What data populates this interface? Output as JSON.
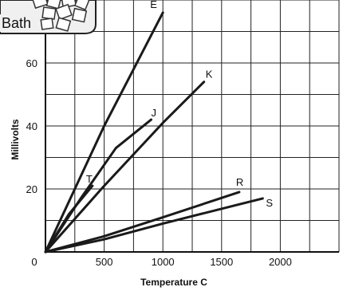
{
  "chart_data": {
    "type": "line",
    "title": "",
    "xlabel": "Temperature C",
    "ylabel": "Millivolts",
    "xlim": [
      0,
      2500
    ],
    "ylim": [
      0,
      80
    ],
    "x_ticks": [
      {
        "value": 0,
        "label": "0"
      },
      {
        "value": 500,
        "label": "500"
      },
      {
        "value": 1000,
        "label": "1000"
      },
      {
        "value": 1500,
        "label": "1500"
      },
      {
        "value": 2000,
        "label": "2000"
      }
    ],
    "y_ticks": [
      {
        "value": 20,
        "label": "20"
      },
      {
        "value": 40,
        "label": "40"
      },
      {
        "value": 60,
        "label": "60"
      }
    ],
    "grid": true,
    "line_color": "#1a1a1a",
    "series": [
      {
        "name": "E",
        "x": [
          0,
          250,
          500,
          750,
          1000
        ],
        "y": [
          0,
          20,
          40,
          58,
          76
        ]
      },
      {
        "name": "K",
        "x": [
          0,
          500,
          1000,
          1350
        ],
        "y": [
          0,
          21,
          41,
          54
        ]
      },
      {
        "name": "J",
        "x": [
          0,
          300,
          600,
          900
        ],
        "y": [
          0,
          17,
          33,
          42
        ]
      },
      {
        "name": "T",
        "x": [
          0,
          200,
          400
        ],
        "y": [
          0,
          12,
          21
        ]
      },
      {
        "name": "R",
        "x": [
          0,
          500,
          1000,
          1650
        ],
        "y": [
          0,
          5,
          11,
          19
        ]
      },
      {
        "name": "S",
        "x": [
          0,
          500,
          1000,
          1850
        ],
        "y": [
          0,
          4,
          9,
          17
        ]
      }
    ]
  },
  "badge": {
    "text": "Bath"
  }
}
